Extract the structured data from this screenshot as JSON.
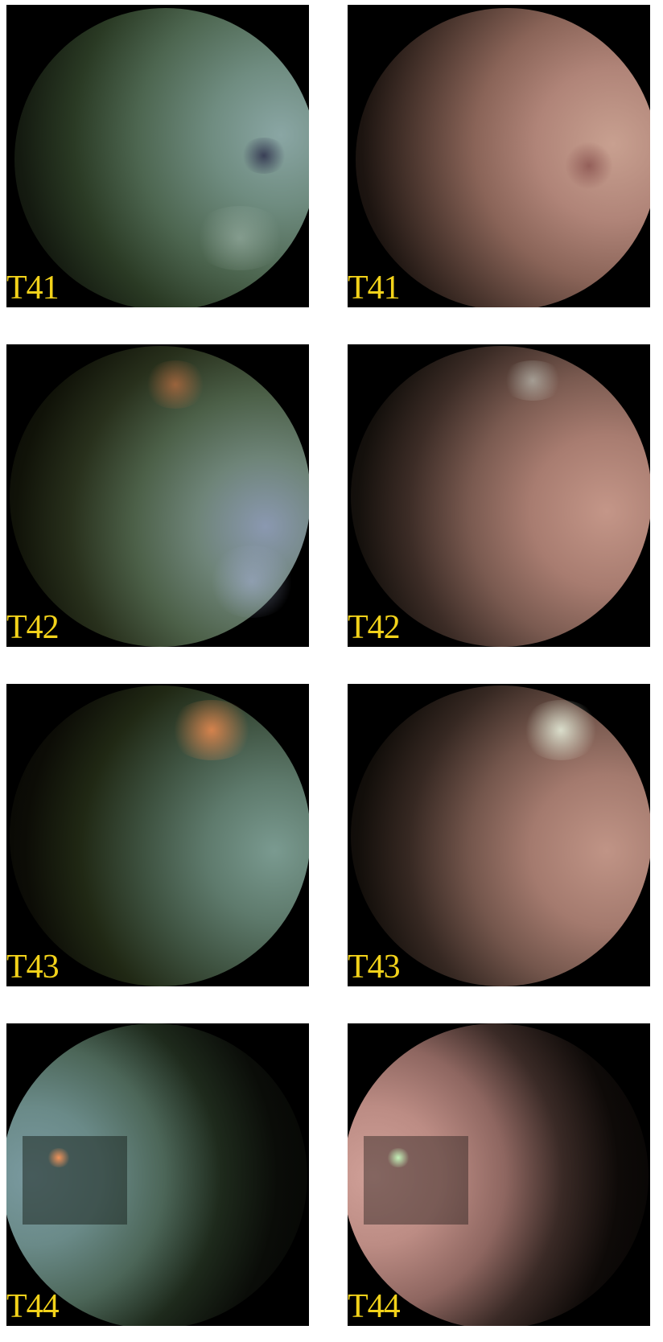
{
  "panels": [
    {
      "label": "T41",
      "set": "left"
    },
    {
      "label": "T41",
      "set": "right"
    },
    {
      "label": "T42",
      "set": "left"
    },
    {
      "label": "T42",
      "set": "right"
    },
    {
      "label": "T43",
      "set": "left"
    },
    {
      "label": "T43",
      "set": "right"
    },
    {
      "label": "T44",
      "set": "left"
    },
    {
      "label": "T44",
      "set": "right"
    }
  ],
  "colors": {
    "panel_background": "#000000",
    "label_color": "#f2d21a",
    "left_globe_tint": "#5c7a68",
    "right_globe_tint": "#b8867a",
    "bright_cloud_left": "#e8844a",
    "bright_cloud_right": "#e8f0d8"
  }
}
